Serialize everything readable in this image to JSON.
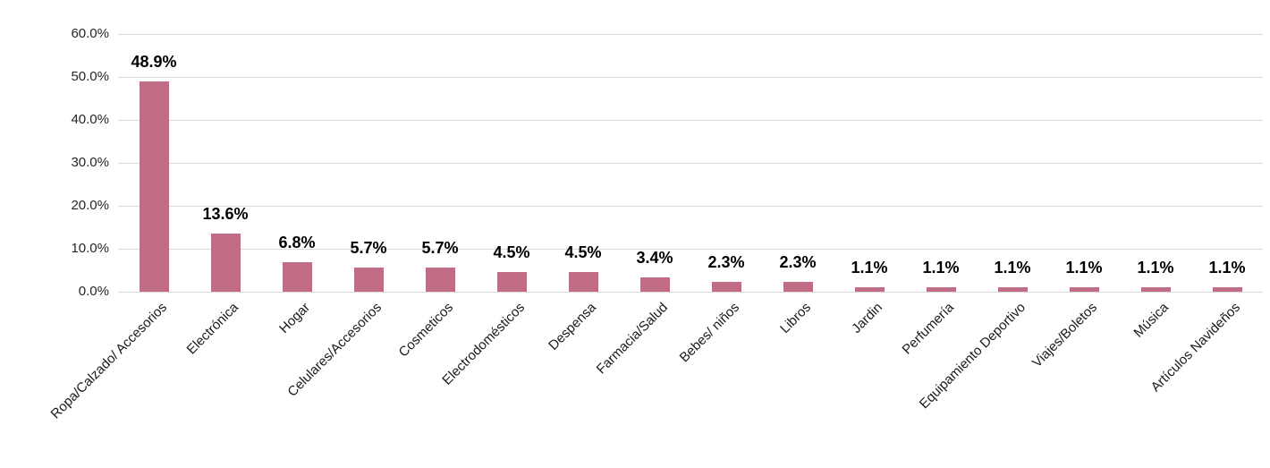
{
  "chart_data": {
    "type": "bar",
    "title": "",
    "xlabel": "",
    "ylabel": "",
    "categories": [
      "Ropa/Calzado/ Accesorios",
      "Electrónica",
      "Hogar",
      "Celulares/Accesorios",
      "Cosmeticos",
      "Electrodomésticos",
      "Despensa",
      "Farmacia/Salud",
      "Bebes/ niños",
      "Libros",
      "Jardin",
      "Perfumería",
      "Equipamiento Deportivo",
      "Viajes/Boletos",
      "Música",
      "Artículos Navideños"
    ],
    "values": [
      48.9,
      13.6,
      6.8,
      5.7,
      5.7,
      4.5,
      4.5,
      3.4,
      2.3,
      2.3,
      1.1,
      1.1,
      1.1,
      1.1,
      1.1,
      1.1
    ],
    "value_labels": [
      "48.9%",
      "13.6%",
      "6.8%",
      "5.7%",
      "5.7%",
      "4.5%",
      "4.5%",
      "3.4%",
      "2.3%",
      "2.3%",
      "1.1%",
      "1.1%",
      "1.1%",
      "1.1%",
      "1.1%",
      "1.1%"
    ],
    "ylim": [
      0,
      60
    ],
    "ytick_step": 10,
    "ytick_labels": [
      "0.0%",
      "10.0%",
      "20.0%",
      "30.0%",
      "40.0%",
      "50.0%",
      "60.0%"
    ],
    "grid": true,
    "legend": false,
    "colors": {
      "bar": "#c16c85",
      "gridline": "#d9d9d9",
      "value_label": "#000000",
      "axis_text": "#262626"
    }
  }
}
